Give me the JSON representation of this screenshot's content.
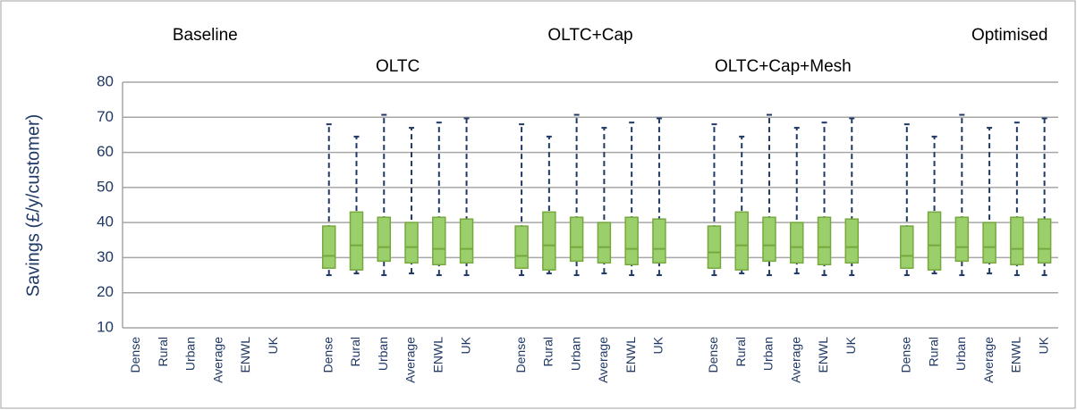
{
  "chart_data": {
    "type": "box",
    "ylabel": "Savings (£/y/customer)",
    "groups": [
      "Baseline",
      "OLTC",
      "OLTC+Cap",
      "OLTC+Cap+Mesh",
      "Optimised"
    ],
    "categories": [
      "Dense",
      "Rural",
      "Urban",
      "Average",
      "ENWL",
      "UK",
      null,
      "Dense",
      "Rural",
      "Urban",
      "Average",
      "ENWL",
      "UK",
      null,
      "Dense",
      "Rural",
      "Urban",
      "Average",
      "ENWL",
      "UK",
      null,
      "Dense",
      "Rural",
      "Urban",
      "Average",
      "ENWL",
      "UK",
      null,
      "Dense",
      "Rural",
      "Urban",
      "Average",
      "ENWL",
      "UK"
    ],
    "boxes": [
      null,
      null,
      null,
      null,
      null,
      null,
      null,
      {
        "min": 25,
        "q1": 27,
        "median": 30.5,
        "q3": 39,
        "max": 68
      },
      {
        "min": 25.5,
        "q1": 26.5,
        "median": 33.5,
        "q3": 43,
        "max": 64.5
      },
      {
        "min": 25,
        "q1": 29,
        "median": 33,
        "q3": 41.5,
        "max": 70.7
      },
      {
        "min": 25.5,
        "q1": 28.5,
        "median": 33,
        "q3": 40,
        "max": 67
      },
      {
        "min": 25,
        "q1": 28,
        "median": 32.5,
        "q3": 41.5,
        "max": 68.5
      },
      {
        "min": 25,
        "q1": 28.5,
        "median": 32.5,
        "q3": 41,
        "max": 69.7
      },
      null,
      {
        "min": 25,
        "q1": 27,
        "median": 30.5,
        "q3": 39,
        "max": 68
      },
      {
        "min": 25.5,
        "q1": 26.5,
        "median": 33.5,
        "q3": 43,
        "max": 64.5
      },
      {
        "min": 25,
        "q1": 29,
        "median": 33,
        "q3": 41.5,
        "max": 70.7
      },
      {
        "min": 25.5,
        "q1": 28.5,
        "median": 33,
        "q3": 40,
        "max": 67
      },
      {
        "min": 25,
        "q1": 28,
        "median": 32.5,
        "q3": 41.5,
        "max": 68.5
      },
      {
        "min": 25,
        "q1": 28.5,
        "median": 32.5,
        "q3": 41,
        "max": 69.7
      },
      null,
      {
        "min": 25,
        "q1": 27,
        "median": 31.5,
        "q3": 39,
        "max": 68
      },
      {
        "min": 25.5,
        "q1": 26.5,
        "median": 33.5,
        "q3": 43,
        "max": 64.5
      },
      {
        "min": 25,
        "q1": 29,
        "median": 33.5,
        "q3": 41.5,
        "max": 70.7
      },
      {
        "min": 25.5,
        "q1": 28.5,
        "median": 33,
        "q3": 40,
        "max": 67
      },
      {
        "min": 25,
        "q1": 28,
        "median": 33,
        "q3": 41.5,
        "max": 68.5
      },
      {
        "min": 25,
        "q1": 28.5,
        "median": 33,
        "q3": 41,
        "max": 69.7
      },
      null,
      {
        "min": 25,
        "q1": 27,
        "median": 30.5,
        "q3": 39,
        "max": 68
      },
      {
        "min": 25.5,
        "q1": 26.5,
        "median": 33.5,
        "q3": 43,
        "max": 64.5
      },
      {
        "min": 25,
        "q1": 29,
        "median": 33,
        "q3": 41.5,
        "max": 70.7
      },
      {
        "min": 25.5,
        "q1": 28.5,
        "median": 33,
        "q3": 40,
        "max": 67
      },
      {
        "min": 25,
        "q1": 28,
        "median": 32.5,
        "q3": 41.5,
        "max": 68.5
      },
      {
        "min": 25,
        "q1": 28.5,
        "median": 32.5,
        "q3": 41,
        "max": 69.7
      }
    ],
    "color": "#9bcf6b",
    "edge_color": "#76a83e",
    "whisker_color": "#1f3864",
    "ylim": [
      10,
      80
    ],
    "yticks": [
      10,
      20,
      30,
      40,
      50,
      60,
      70,
      80
    ],
    "grid": true
  }
}
